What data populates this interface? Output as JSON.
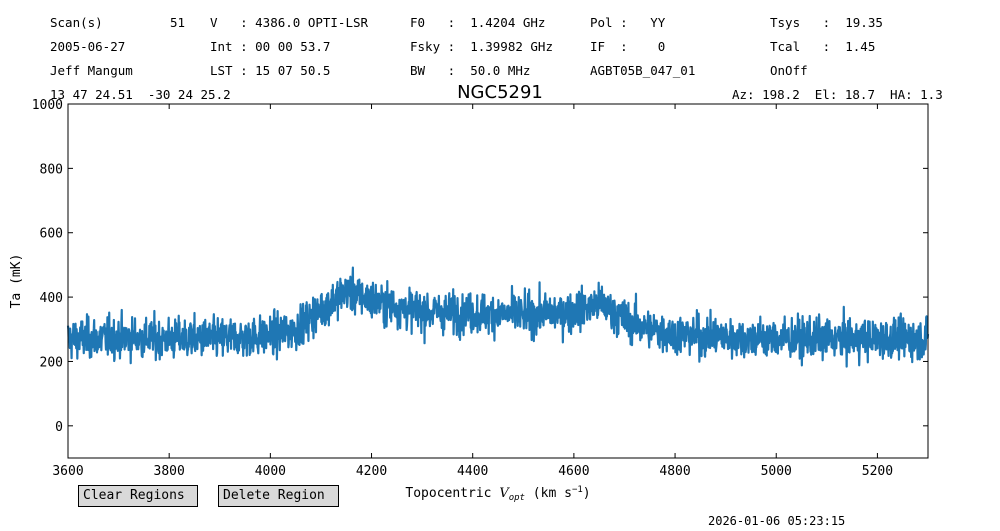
{
  "header": {
    "scan_label": "Scan(s)",
    "scan_num": "51",
    "date": "2005-06-27",
    "observer": "Jeff Mangum",
    "coords": "13 47 24.51  -30 24 25.2",
    "v": "V   : 4386.0 OPTI-LSR",
    "int": "Int : 00 00 53.7",
    "lst": "LST : 15 07 50.5",
    "f0": "F0   :  1.4204 GHz",
    "fsky": "Fsky :  1.39982 GHz",
    "bw": "BW   :  50.0 MHz",
    "pol": "Pol :   YY",
    "if": "IF  :    0",
    "project": "AGBT05B_047_01",
    "tsys": "Tsys   :  19.35",
    "tcal": "Tcal   :  1.45",
    "procedure": "OnOff",
    "azel": "Az: 198.2  El: 18.7  HA: 1.3"
  },
  "buttons": {
    "clear_regions": "Clear Regions",
    "delete_region": "Delete Region"
  },
  "timestamp": "2026-01-06 05:23:15",
  "colors": {
    "line": "#1f77b4"
  },
  "chart_data": {
    "type": "line",
    "title": "NGC5291",
    "xlabel": "Topocentric V_opt (km s^-1)",
    "ylabel": "Ta (mK)",
    "xlim": [
      3600,
      5300
    ],
    "ylim": [
      -100,
      1000
    ],
    "xticks": [
      3600,
      3800,
      4000,
      4200,
      4400,
      4600,
      4800,
      5000,
      5200
    ],
    "yticks": [
      0,
      200,
      400,
      600,
      800,
      1000
    ],
    "series": [
      {
        "x": [
          3600,
          3700,
          3800,
          3900,
          4000,
          4050,
          4100,
          4150,
          4200,
          4250,
          4300,
          4400,
          4500,
          4600,
          4650,
          4700,
          4750,
          4800,
          4900,
          5000,
          5100,
          5200,
          5300
        ],
        "y": [
          270,
          275,
          270,
          272,
          280,
          300,
          360,
          420,
          390,
          370,
          355,
          350,
          345,
          355,
          380,
          330,
          300,
          285,
          275,
          270,
          270,
          270,
          270
        ]
      }
    ],
    "noise_amplitude_mK": 75,
    "grid": false
  }
}
